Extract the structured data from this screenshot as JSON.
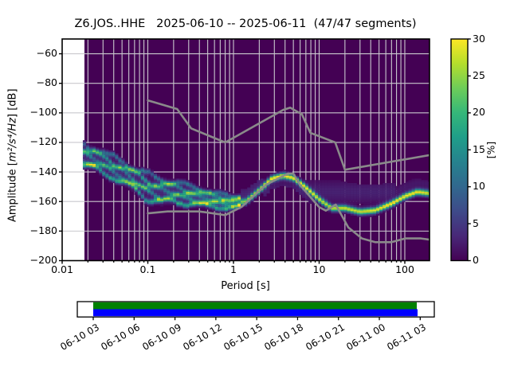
{
  "title": "Z6.JOS..HHE   2025-06-10 -- 2025-06-11  (47/47 segments)",
  "axes": {
    "xlabel": "Period [s]",
    "ylabel_prefix": "Amplitude [",
    "ylabel_math": "m²/s⁴/Hz",
    "ylabel_suffix": "] [dB]",
    "x_ticks": [
      {
        "v": 0.01,
        "label": "0.01"
      },
      {
        "v": 0.1,
        "label": "0.1"
      },
      {
        "v": 1,
        "label": "1"
      },
      {
        "v": 10,
        "label": "10"
      },
      {
        "v": 100,
        "label": "100"
      }
    ],
    "y_ticks": [
      {
        "v": -60,
        "label": "−60"
      },
      {
        "v": -80,
        "label": "−80"
      },
      {
        "v": -100,
        "label": "−100"
      },
      {
        "v": -120,
        "label": "−120"
      },
      {
        "v": -140,
        "label": "−140"
      },
      {
        "v": -160,
        "label": "−160"
      },
      {
        "v": -180,
        "label": "−180"
      },
      {
        "v": -200,
        "label": "−200"
      }
    ]
  },
  "colorbar": {
    "label": "[%]",
    "min": 0,
    "max": 30,
    "ticks": [
      {
        "v": 0,
        "label": "0"
      },
      {
        "v": 5,
        "label": "5"
      },
      {
        "v": 10,
        "label": "10"
      },
      {
        "v": 15,
        "label": "15"
      },
      {
        "v": 20,
        "label": "20"
      },
      {
        "v": 25,
        "label": "25"
      },
      {
        "v": 30,
        "label": "30"
      }
    ],
    "colormap": "viridis"
  },
  "timeline": {
    "labels": [
      "06-10 03",
      "06-10 06",
      "06-10 09",
      "06-10 12",
      "06-10 15",
      "06-10 18",
      "06-10 21",
      "06-11 00",
      "06-11 03"
    ],
    "top_bar_color": "#008000",
    "bottom_bar_color": "#0000ff"
  },
  "chart_data": {
    "type": "heatmap",
    "description": "Probabilistic power spectral density, percentage of 47 segments per 1 dB bin vs period",
    "x_axis": {
      "label": "Period [s]",
      "scale": "log",
      "range": [
        0.01,
        194
      ]
    },
    "y_axis": {
      "label": "Amplitude [m2/s4/Hz] [dB]",
      "range": [
        -200,
        -50
      ]
    },
    "color_axis": {
      "label": "[%]",
      "range": [
        0,
        30
      ],
      "colormap": "viridis",
      "background_hex": "#440154"
    },
    "grid": true,
    "data_period_start": 0.0182,
    "period_bin_octave_step": 0.125,
    "ppsd_ridge": {
      "periods": [
        0.018,
        0.025,
        0.035,
        0.05,
        0.07,
        0.1,
        0.14,
        0.2,
        0.3,
        0.45,
        0.7,
        1.0,
        1.4,
        2.0,
        2.8,
        3.8,
        5.0,
        7.0,
        10,
        14,
        20,
        30,
        45,
        70,
        100,
        140,
        194
      ],
      "mode_db": [
        -127,
        -130,
        -134,
        -138,
        -143,
        -147,
        -150,
        -152,
        -155,
        -157,
        -159.5,
        -161,
        -160,
        -152.5,
        -144.5,
        -142.5,
        -144,
        -150.5,
        -158.5,
        -164.5,
        -164.5,
        -167,
        -166,
        -161.5,
        -156.5,
        -153.5,
        -154.5
      ],
      "band_top_db": [
        -119.5,
        -123,
        -127,
        -131,
        -136,
        -140,
        -143,
        -145,
        -148,
        -151,
        -154,
        -156,
        -155,
        -149,
        -141.5,
        -139.5,
        -140.5,
        -145,
        -147,
        -148,
        -150,
        -152,
        -152,
        -151,
        -149,
        -148,
        -150
      ],
      "band_bottom_db": [
        -139,
        -141,
        -145,
        -150,
        -155,
        -162,
        -164,
        -163,
        -164,
        -165,
        -166,
        -166,
        -164,
        -157,
        -148,
        -146,
        -147.5,
        -155,
        -164,
        -169,
        -169.5,
        -170.5,
        -170.5,
        -166,
        -160.5,
        -157.5,
        -158.5
      ],
      "mode_percent": [
        12,
        12,
        13,
        13,
        14,
        16,
        15,
        16,
        17,
        18,
        20,
        22,
        24,
        27,
        30,
        30,
        29,
        27,
        26,
        27,
        28,
        28,
        29,
        30,
        30,
        30,
        28
      ]
    },
    "noise_models": {
      "color_hex": "#8a8a8a",
      "nlnm": [
        [
          0.1,
          -168.0
        ],
        [
          0.17,
          -166.7
        ],
        [
          0.4,
          -166.7
        ],
        [
          0.8,
          -169.2
        ],
        [
          1.24,
          -163.7
        ],
        [
          2.4,
          -148.6
        ],
        [
          4.3,
          -141.1
        ],
        [
          5.0,
          -141.1
        ],
        [
          6.0,
          -149.0
        ],
        [
          10.0,
          -163.8
        ],
        [
          12.0,
          -166.2
        ],
        [
          15.6,
          -162.1
        ],
        [
          21.9,
          -177.5
        ],
        [
          31.6,
          -185.0
        ],
        [
          45.0,
          -187.5
        ],
        [
          70.0,
          -187.5
        ],
        [
          101.0,
          -185.0
        ],
        [
          154.0,
          -185.0
        ],
        [
          194.0,
          -185.8
        ]
      ],
      "nhnm": [
        [
          0.1,
          -91.5
        ],
        [
          0.22,
          -97.4
        ],
        [
          0.32,
          -110.5
        ],
        [
          0.8,
          -120.0
        ],
        [
          3.8,
          -98.0
        ],
        [
          4.6,
          -96.5
        ],
        [
          6.3,
          -101.0
        ],
        [
          7.9,
          -113.5
        ],
        [
          15.4,
          -120.0
        ],
        [
          20.0,
          -138.5
        ],
        [
          194.0,
          -128.6
        ]
      ]
    }
  }
}
